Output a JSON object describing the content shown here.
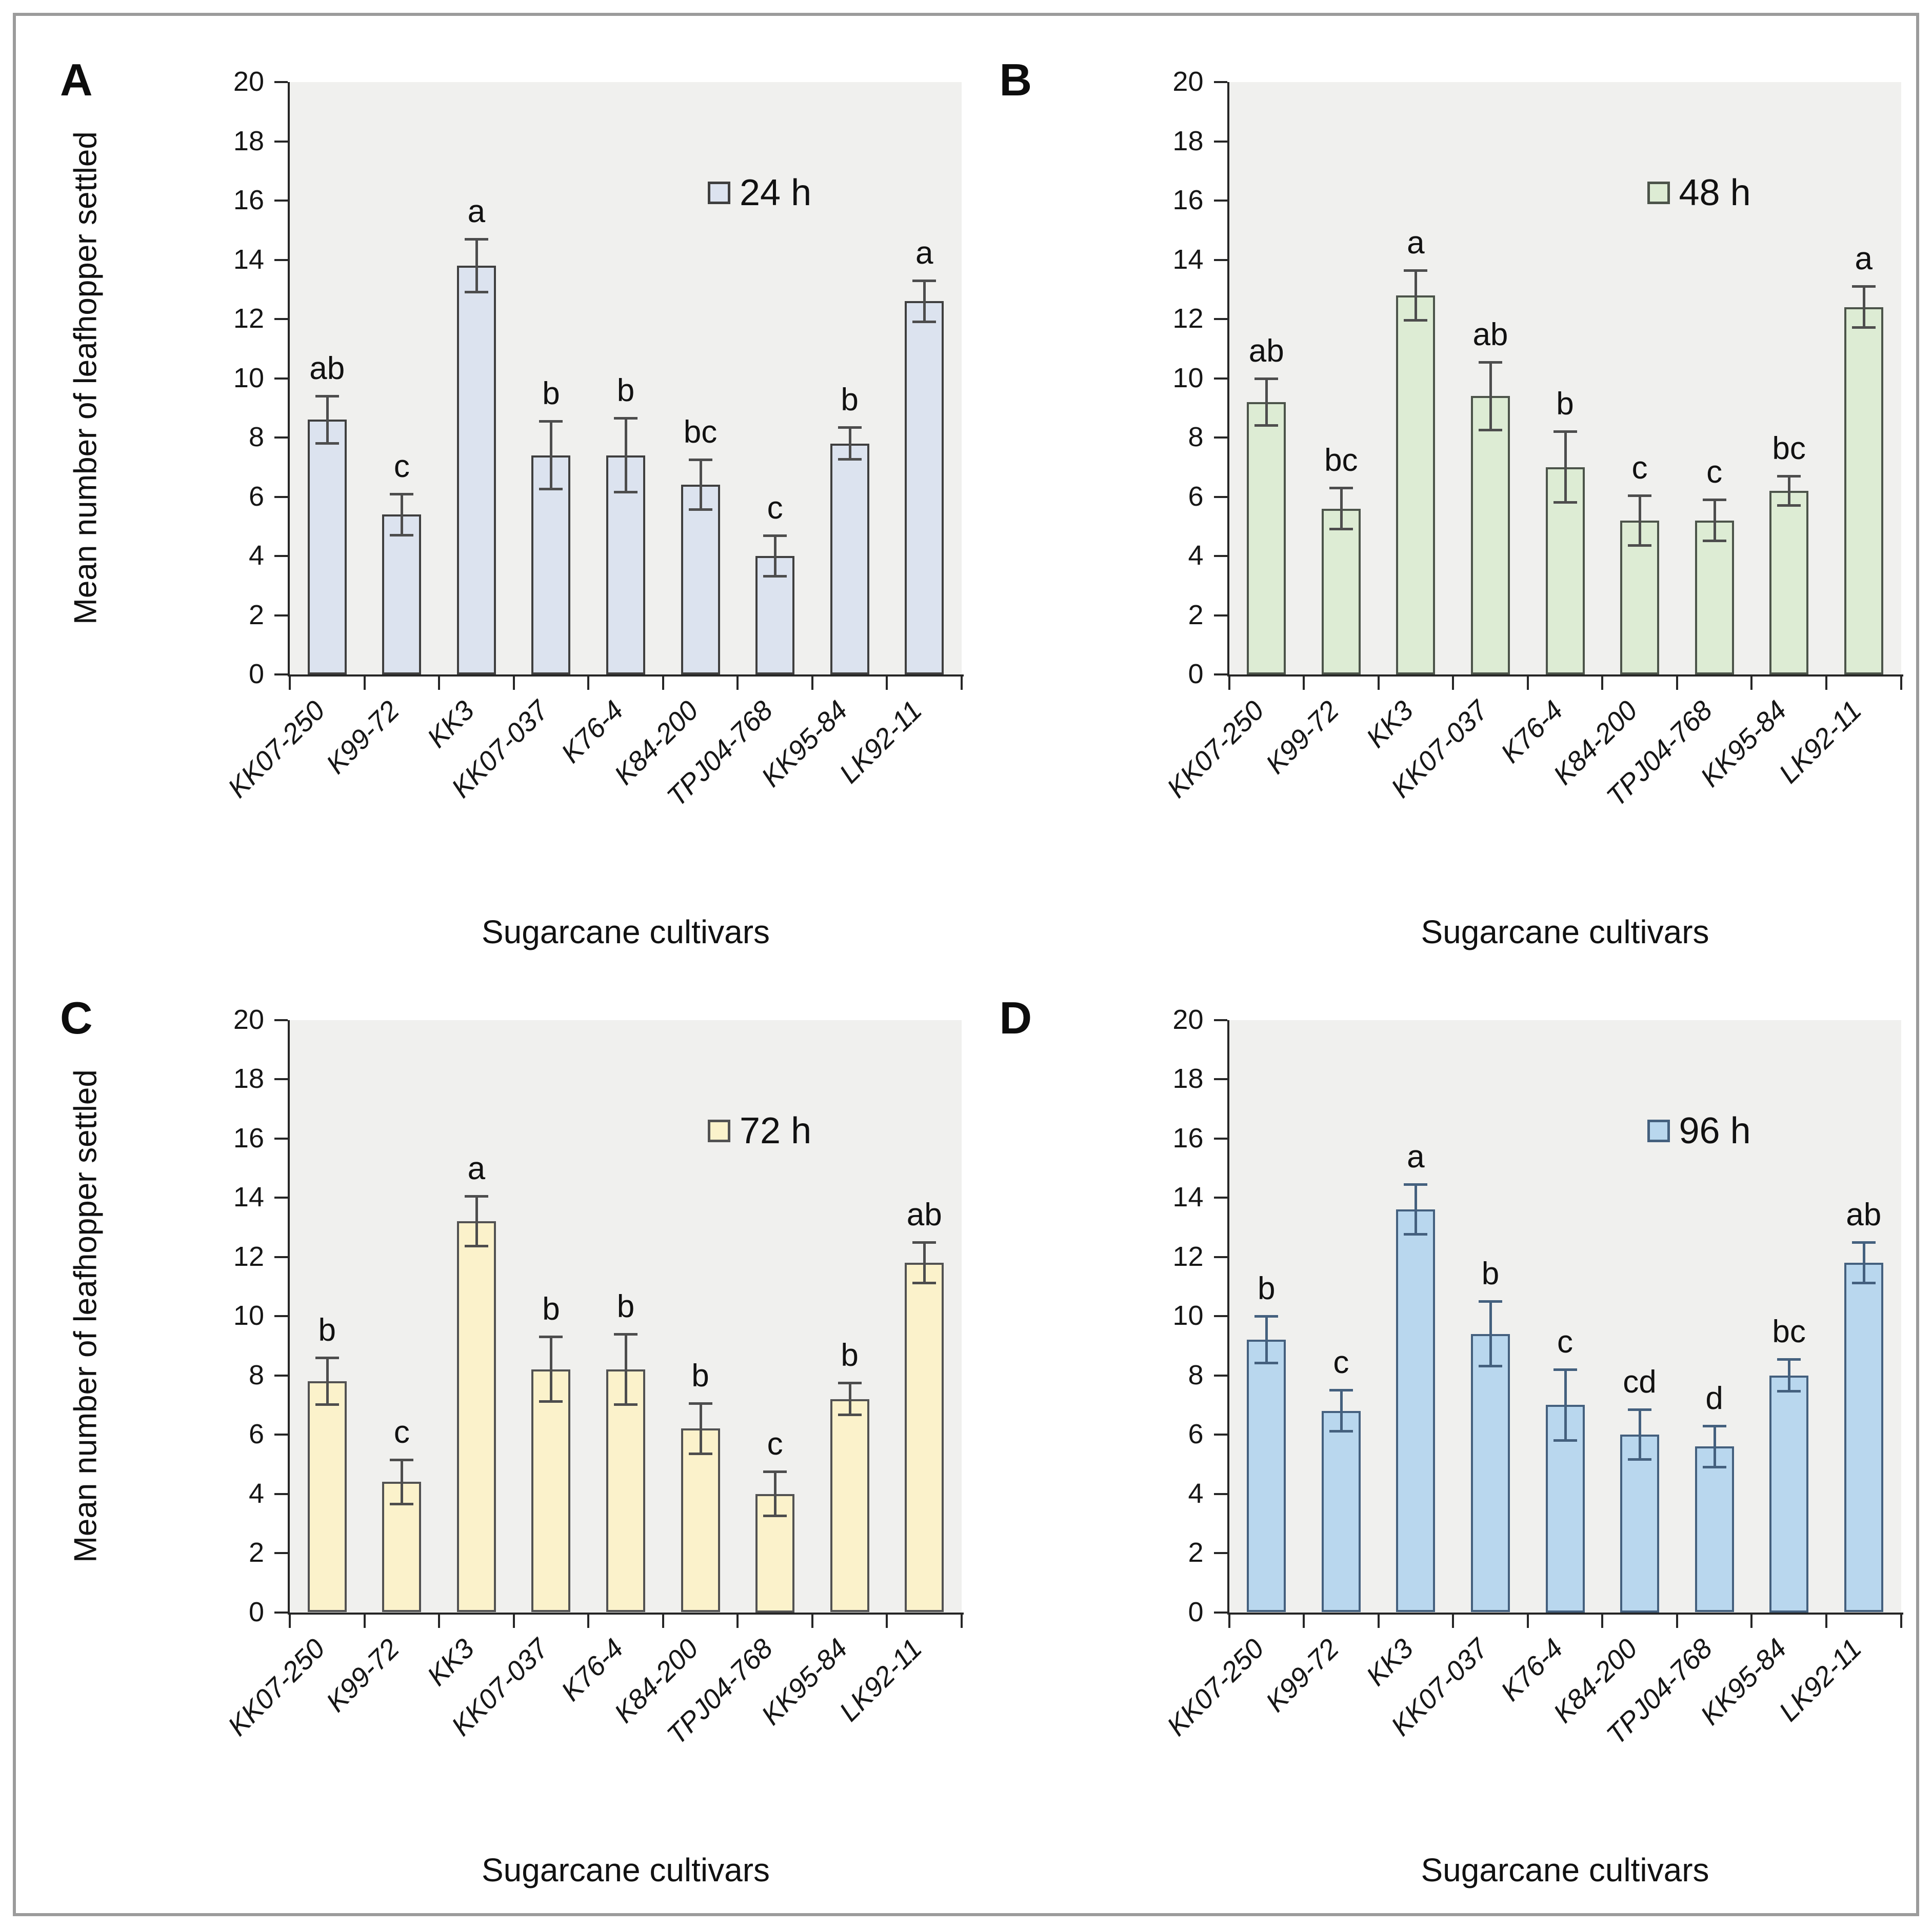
{
  "figure": {
    "frame_border_color": "#9b9b9b",
    "plot_background": "#f0f0ee",
    "axis_color": "#262626",
    "y_axis_title": "Mean number of leafhopper settled",
    "x_axis_title": "Sugarcane cultivars",
    "y_ticks": [
      0,
      2,
      4,
      6,
      8,
      10,
      12,
      14,
      16,
      18,
      20
    ],
    "categories": [
      "KK07-250",
      "K99-72",
      "KK3",
      "KK07-037",
      "K76-4",
      "K84-200",
      "TPJ04-768",
      "KK95-84",
      "LK92-11"
    ]
  },
  "chart_data": [
    {
      "type": "bar",
      "panel": "A",
      "legend": "24 h",
      "title": "",
      "xlabel": "Sugarcane cultivars",
      "ylabel": "Mean number of leafhopper settled",
      "ylim": [
        0,
        20
      ],
      "grid": false,
      "legend_position": "upper-right-inside",
      "categories": [
        "KK07-250",
        "K99-72",
        "KK3",
        "KK07-037",
        "K76-4",
        "K84-200",
        "TPJ04-768",
        "KK95-84",
        "LK92-11"
      ],
      "values": [
        8.6,
        5.4,
        13.8,
        7.4,
        7.4,
        6.4,
        4.0,
        7.8,
        12.6
      ],
      "errors": [
        0.8,
        0.7,
        0.9,
        1.15,
        1.25,
        0.85,
        0.7,
        0.55,
        0.7
      ],
      "sig_letters": [
        "ab",
        "c",
        "a",
        "b",
        "b",
        "bc",
        "c",
        "b",
        "a"
      ],
      "bar_fill": "#dce3ef",
      "bar_border": "#3f3f3f",
      "error_color": "#4d4d4d"
    },
    {
      "type": "bar",
      "panel": "B",
      "legend": "48 h",
      "title": "",
      "xlabel": "Sugarcane cultivars",
      "ylabel": "",
      "ylim": [
        0,
        20
      ],
      "grid": false,
      "legend_position": "upper-right-inside",
      "categories": [
        "KK07-250",
        "K99-72",
        "KK3",
        "KK07-037",
        "K76-4",
        "K84-200",
        "TPJ04-768",
        "KK95-84",
        "LK92-11"
      ],
      "values": [
        9.2,
        5.6,
        12.8,
        9.4,
        7.0,
        5.2,
        5.2,
        6.2,
        12.4
      ],
      "errors": [
        0.8,
        0.7,
        0.85,
        1.15,
        1.2,
        0.85,
        0.7,
        0.5,
        0.7
      ],
      "sig_letters": [
        "ab",
        "bc",
        "a",
        "ab",
        "b",
        "c",
        "c",
        "bc",
        "a"
      ],
      "bar_fill": "#ddecd4",
      "bar_border": "#4c544a",
      "error_color": "#4d4d4d"
    },
    {
      "type": "bar",
      "panel": "C",
      "legend": "72 h",
      "title": "",
      "xlabel": "Sugarcane cultivars",
      "ylabel": "Mean number of leafhopper settled",
      "ylim": [
        0,
        20
      ],
      "grid": false,
      "legend_position": "upper-right-inside",
      "categories": [
        "KK07-250",
        "K99-72",
        "KK3",
        "KK07-037",
        "K76-4",
        "K84-200",
        "TPJ04-768",
        "KK95-84",
        "LK92-11"
      ],
      "values": [
        7.8,
        4.4,
        13.2,
        8.2,
        8.2,
        6.2,
        4.0,
        7.2,
        11.8
      ],
      "errors": [
        0.8,
        0.75,
        0.85,
        1.1,
        1.2,
        0.85,
        0.75,
        0.55,
        0.7
      ],
      "sig_letters": [
        "b",
        "c",
        "a",
        "b",
        "b",
        "b",
        "c",
        "b",
        "ab"
      ],
      "bar_fill": "#fbf2cb",
      "bar_border": "#525252",
      "error_color": "#4d4d4d"
    },
    {
      "type": "bar",
      "panel": "D",
      "legend": "96 h",
      "title": "",
      "xlabel": "Sugarcane cultivars",
      "ylabel": "",
      "ylim": [
        0,
        20
      ],
      "grid": false,
      "legend_position": "upper-right-inside",
      "categories": [
        "KK07-250",
        "K99-72",
        "KK3",
        "KK07-037",
        "K76-4",
        "K84-200",
        "TPJ04-768",
        "KK95-84",
        "LK92-11"
      ],
      "values": [
        9.2,
        6.8,
        13.6,
        9.4,
        7.0,
        6.0,
        5.6,
        8.0,
        11.8
      ],
      "errors": [
        0.8,
        0.7,
        0.85,
        1.1,
        1.2,
        0.85,
        0.7,
        0.55,
        0.7
      ],
      "sig_letters": [
        "b",
        "c",
        "a",
        "b",
        "c",
        "cd",
        "d",
        "bc",
        "ab"
      ],
      "bar_fill": "#b9d7ee",
      "bar_border": "#44607e",
      "error_color": "#44607e"
    }
  ]
}
